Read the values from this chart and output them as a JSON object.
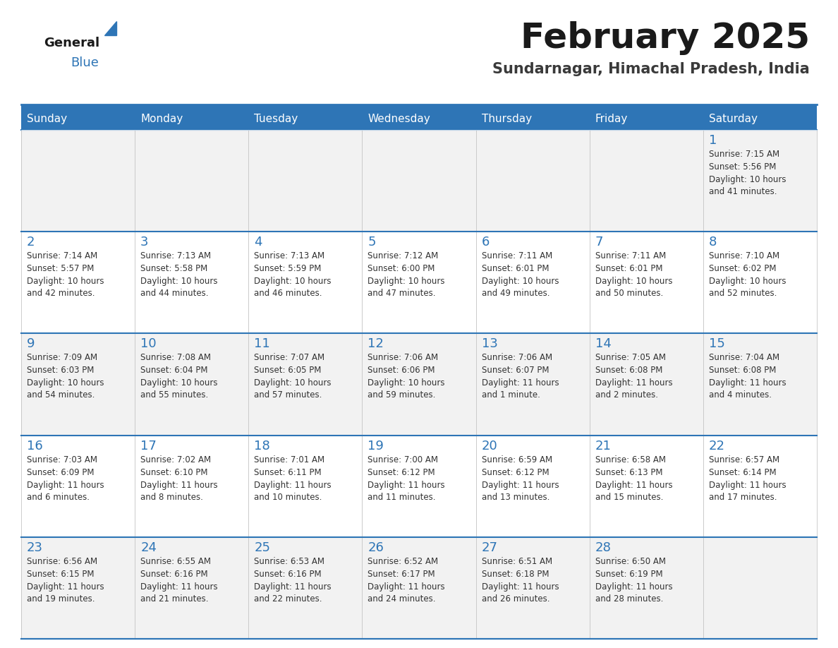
{
  "title": "February 2025",
  "subtitle": "Sundarnagar, Himachal Pradesh, India",
  "header_bg": "#2E75B6",
  "header_text_color": "#FFFFFF",
  "title_color": "#1a1a1a",
  "subtitle_color": "#3a3a3a",
  "day_names": [
    "Sunday",
    "Monday",
    "Tuesday",
    "Wednesday",
    "Thursday",
    "Friday",
    "Saturday"
  ],
  "cell_bg": "#FFFFFF",
  "cell_alt_bg": "#F2F2F2",
  "cell_border_color": "#2E75B6",
  "day_number_color": "#2E75B6",
  "text_color": "#333333",
  "logo_general_color": "#1a1a1a",
  "logo_blue_color": "#2E75B6",
  "logo_triangle_color": "#2E75B6",
  "calendar_data": [
    [
      null,
      null,
      null,
      null,
      null,
      null,
      {
        "day": "1",
        "sunrise": "7:15 AM",
        "sunset": "5:56 PM",
        "daylight": "10 hours\nand 41 minutes."
      }
    ],
    [
      {
        "day": "2",
        "sunrise": "7:14 AM",
        "sunset": "5:57 PM",
        "daylight": "10 hours\nand 42 minutes."
      },
      {
        "day": "3",
        "sunrise": "7:13 AM",
        "sunset": "5:58 PM",
        "daylight": "10 hours\nand 44 minutes."
      },
      {
        "day": "4",
        "sunrise": "7:13 AM",
        "sunset": "5:59 PM",
        "daylight": "10 hours\nand 46 minutes."
      },
      {
        "day": "5",
        "sunrise": "7:12 AM",
        "sunset": "6:00 PM",
        "daylight": "10 hours\nand 47 minutes."
      },
      {
        "day": "6",
        "sunrise": "7:11 AM",
        "sunset": "6:01 PM",
        "daylight": "10 hours\nand 49 minutes."
      },
      {
        "day": "7",
        "sunrise": "7:11 AM",
        "sunset": "6:01 PM",
        "daylight": "10 hours\nand 50 minutes."
      },
      {
        "day": "8",
        "sunrise": "7:10 AM",
        "sunset": "6:02 PM",
        "daylight": "10 hours\nand 52 minutes."
      }
    ],
    [
      {
        "day": "9",
        "sunrise": "7:09 AM",
        "sunset": "6:03 PM",
        "daylight": "10 hours\nand 54 minutes."
      },
      {
        "day": "10",
        "sunrise": "7:08 AM",
        "sunset": "6:04 PM",
        "daylight": "10 hours\nand 55 minutes."
      },
      {
        "day": "11",
        "sunrise": "7:07 AM",
        "sunset": "6:05 PM",
        "daylight": "10 hours\nand 57 minutes."
      },
      {
        "day": "12",
        "sunrise": "7:06 AM",
        "sunset": "6:06 PM",
        "daylight": "10 hours\nand 59 minutes."
      },
      {
        "day": "13",
        "sunrise": "7:06 AM",
        "sunset": "6:07 PM",
        "daylight": "11 hours\nand 1 minute."
      },
      {
        "day": "14",
        "sunrise": "7:05 AM",
        "sunset": "6:08 PM",
        "daylight": "11 hours\nand 2 minutes."
      },
      {
        "day": "15",
        "sunrise": "7:04 AM",
        "sunset": "6:08 PM",
        "daylight": "11 hours\nand 4 minutes."
      }
    ],
    [
      {
        "day": "16",
        "sunrise": "7:03 AM",
        "sunset": "6:09 PM",
        "daylight": "11 hours\nand 6 minutes."
      },
      {
        "day": "17",
        "sunrise": "7:02 AM",
        "sunset": "6:10 PM",
        "daylight": "11 hours\nand 8 minutes."
      },
      {
        "day": "18",
        "sunrise": "7:01 AM",
        "sunset": "6:11 PM",
        "daylight": "11 hours\nand 10 minutes."
      },
      {
        "day": "19",
        "sunrise": "7:00 AM",
        "sunset": "6:12 PM",
        "daylight": "11 hours\nand 11 minutes."
      },
      {
        "day": "20",
        "sunrise": "6:59 AM",
        "sunset": "6:12 PM",
        "daylight": "11 hours\nand 13 minutes."
      },
      {
        "day": "21",
        "sunrise": "6:58 AM",
        "sunset": "6:13 PM",
        "daylight": "11 hours\nand 15 minutes."
      },
      {
        "day": "22",
        "sunrise": "6:57 AM",
        "sunset": "6:14 PM",
        "daylight": "11 hours\nand 17 minutes."
      }
    ],
    [
      {
        "day": "23",
        "sunrise": "6:56 AM",
        "sunset": "6:15 PM",
        "daylight": "11 hours\nand 19 minutes."
      },
      {
        "day": "24",
        "sunrise": "6:55 AM",
        "sunset": "6:16 PM",
        "daylight": "11 hours\nand 21 minutes."
      },
      {
        "day": "25",
        "sunrise": "6:53 AM",
        "sunset": "6:16 PM",
        "daylight": "11 hours\nand 22 minutes."
      },
      {
        "day": "26",
        "sunrise": "6:52 AM",
        "sunset": "6:17 PM",
        "daylight": "11 hours\nand 24 minutes."
      },
      {
        "day": "27",
        "sunrise": "6:51 AM",
        "sunset": "6:18 PM",
        "daylight": "11 hours\nand 26 minutes."
      },
      {
        "day": "28",
        "sunrise": "6:50 AM",
        "sunset": "6:19 PM",
        "daylight": "11 hours\nand 28 minutes."
      },
      null
    ]
  ]
}
